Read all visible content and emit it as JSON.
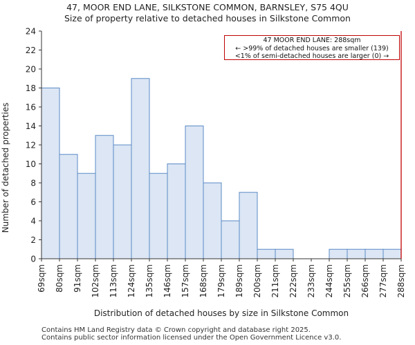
{
  "header": {
    "title_line1": "47, MOOR END LANE, SILKSTONE COMMON, BARNSLEY, S75 4QU",
    "title_line2": "Size of property relative to detached houses in Silkstone Common"
  },
  "annotation": {
    "line1": "47 MOOR END LANE: 288sqm",
    "line2": "← >99% of detached houses are smaller (139)",
    "line3": "<1% of semi-detached houses are larger (0) →"
  },
  "footer": {
    "line1": "Contains HM Land Registry data © Crown copyright and database right 2025.",
    "line2": "Contains public sector information licensed under the Open Government Licence v3.0."
  },
  "colors": {
    "bar_fill": "#dce6f4",
    "bar_stroke": "#5a8ac6",
    "marker": "#c00000",
    "axis": "#333333"
  },
  "chart_data": {
    "type": "bar",
    "title": "47, MOOR END LANE, SILKSTONE COMMON, BARNSLEY, S75 4QU",
    "subtitle": "Size of property relative to detached houses in Silkstone Common",
    "xlabel": "Distribution of detached houses by size in Silkstone Common",
    "ylabel": "Number of detached properties",
    "ylim": [
      0,
      24
    ],
    "yticks": [
      0,
      2,
      4,
      6,
      8,
      10,
      12,
      14,
      16,
      18,
      20,
      22,
      24
    ],
    "bin_labels": [
      "69sqm",
      "80sqm",
      "91sqm",
      "102sqm",
      "113sqm",
      "124sqm",
      "135sqm",
      "146sqm",
      "157sqm",
      "168sqm",
      "179sqm",
      "189sqm",
      "200sqm",
      "211sqm",
      "222sqm",
      "233sqm",
      "244sqm",
      "255sqm",
      "266sqm",
      "277sqm",
      "288sqm"
    ],
    "values": [
      18,
      11,
      9,
      13,
      12,
      19,
      9,
      10,
      14,
      8,
      4,
      7,
      1,
      1,
      0,
      0,
      1,
      1,
      1,
      1
    ],
    "marker_value_sqm": 288,
    "marker_bin_index": 20,
    "grid": false
  }
}
